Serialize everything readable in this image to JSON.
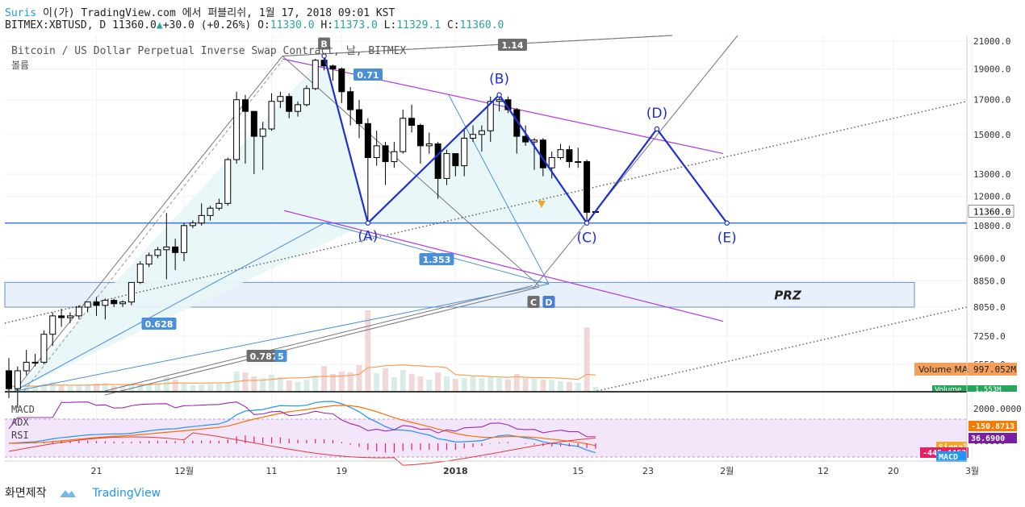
{
  "header": {
    "publisher": "Suris",
    "published_text": "이(가) TradingView.com 에서 퍼블리쉬, 1월 17, 2018 09:01 KST",
    "symbol": "BITMEX:XBTUSD, D",
    "last": "11360.0",
    "arrow": "▲",
    "change": "+30.0 (+0.26%)",
    "o_label": "O:",
    "o": "11330.0",
    "h_label": "H:",
    "h": "11373.0",
    "l_label": "L:",
    "l": "11329.1",
    "c_label": "C:",
    "c": "11360.0"
  },
  "legend": {
    "title": "Bitcoin / US Dollar Perpetual Inverse Swap Contract, 날, BITMEX",
    "volume_label": "볼륨"
  },
  "footer": {
    "left": "화면제작",
    "brand": "TradingView"
  },
  "colors": {
    "up": "#ffffff",
    "down": "#000000",
    "pattern": "#1e2fd6",
    "channel": "#b23be0",
    "prz": "#e8f1fb",
    "gann": "#555555",
    "fib": "#4a90d9",
    "support": "#4a7fd6",
    "macd_line": "#2196f3",
    "signal_line": "#ff6d00",
    "hist": "#e91e63",
    "rsi": "#9c27b0",
    "adx": "#e53935"
  },
  "chart_data": {
    "type": "candlestick",
    "symbol": "BITMEX:XBTUSD",
    "timeframe": "D",
    "price_scale": "log",
    "y_ticks": [
      21000,
      19000,
      17000,
      15000,
      13000,
      12000,
      10800,
      9600,
      8850,
      8050,
      7250,
      6550
    ],
    "y_tick_labels": [
      "21000.0",
      "19000.0",
      "17000.0",
      "15000.0",
      "13000.0",
      "12000.0",
      "10800.0",
      "9600.0",
      "8850.0",
      "8050.0",
      "7250.0",
      "6550.0"
    ],
    "x_ticks": [
      "21",
      "12월",
      "11",
      "19",
      "2018",
      "15",
      "23",
      "2월",
      "12",
      "20",
      "3월"
    ],
    "x_tick_dates": [
      "2017-11-21",
      "2017-12-01",
      "2017-12-11",
      "2017-12-19",
      "2018-01-01",
      "2018-01-15",
      "2018-01-23",
      "2018-02-01",
      "2018-02-12",
      "2018-02-20",
      "2018-03-01"
    ],
    "last_price": 11360.0,
    "last_price_label": "11360.0",
    "candles": [
      {
        "date": "2017-11-11",
        "o": 6400,
        "h": 6700,
        "l": 5800,
        "c": 6000
      },
      {
        "date": "2017-11-12",
        "o": 6000,
        "h": 6500,
        "l": 5600,
        "c": 6400
      },
      {
        "date": "2017-11-13",
        "o": 6400,
        "h": 6900,
        "l": 6300,
        "c": 6600
      },
      {
        "date": "2017-11-14",
        "o": 6600,
        "h": 6800,
        "l": 6500,
        "c": 6600
      },
      {
        "date": "2017-11-15",
        "o": 6600,
        "h": 7400,
        "l": 6550,
        "c": 7300
      },
      {
        "date": "2017-11-16",
        "o": 7300,
        "h": 7900,
        "l": 7000,
        "c": 7800
      },
      {
        "date": "2017-11-17",
        "o": 7800,
        "h": 8000,
        "l": 7500,
        "c": 7750
      },
      {
        "date": "2017-11-18",
        "o": 7750,
        "h": 7900,
        "l": 7600,
        "c": 7800
      },
      {
        "date": "2017-11-19",
        "o": 7800,
        "h": 8100,
        "l": 7700,
        "c": 8050
      },
      {
        "date": "2017-11-20",
        "o": 8050,
        "h": 8200,
        "l": 7900,
        "c": 8200
      },
      {
        "date": "2017-11-21",
        "o": 8200,
        "h": 8350,
        "l": 7800,
        "c": 8100
      },
      {
        "date": "2017-11-22",
        "o": 8100,
        "h": 8300,
        "l": 7700,
        "c": 8250
      },
      {
        "date": "2017-11-23",
        "o": 8250,
        "h": 8300,
        "l": 8050,
        "c": 8150
      },
      {
        "date": "2017-11-24",
        "o": 8150,
        "h": 8250,
        "l": 8050,
        "c": 8200
      },
      {
        "date": "2017-11-25",
        "o": 8200,
        "h": 8800,
        "l": 8100,
        "c": 8800
      },
      {
        "date": "2017-11-26",
        "o": 8800,
        "h": 9500,
        "l": 8750,
        "c": 9400
      },
      {
        "date": "2017-11-27",
        "o": 9400,
        "h": 9800,
        "l": 9300,
        "c": 9700
      },
      {
        "date": "2017-11-28",
        "o": 9700,
        "h": 10000,
        "l": 9600,
        "c": 9900
      },
      {
        "date": "2017-11-29",
        "o": 9900,
        "h": 11300,
        "l": 8900,
        "c": 10000
      },
      {
        "date": "2017-11-30",
        "o": 10000,
        "h": 10300,
        "l": 9200,
        "c": 9800
      },
      {
        "date": "2017-12-01",
        "o": 9800,
        "h": 10900,
        "l": 9500,
        "c": 10800
      },
      {
        "date": "2017-12-02",
        "o": 10800,
        "h": 11000,
        "l": 10700,
        "c": 10900
      },
      {
        "date": "2017-12-03",
        "o": 10900,
        "h": 11700,
        "l": 10800,
        "c": 11200
      },
      {
        "date": "2017-12-04",
        "o": 11200,
        "h": 11600,
        "l": 11000,
        "c": 11500
      },
      {
        "date": "2017-12-05",
        "o": 11500,
        "h": 11900,
        "l": 11400,
        "c": 11700
      },
      {
        "date": "2017-12-06",
        "o": 11700,
        "h": 13800,
        "l": 11600,
        "c": 13700
      },
      {
        "date": "2017-12-07",
        "o": 13700,
        "h": 17500,
        "l": 13500,
        "c": 17000
      },
      {
        "date": "2017-12-08",
        "o": 17000,
        "h": 17300,
        "l": 13500,
        "c": 16300
      },
      {
        "date": "2017-12-09",
        "o": 16300,
        "h": 16300,
        "l": 13000,
        "c": 14900
      },
      {
        "date": "2017-12-10",
        "o": 14900,
        "h": 15700,
        "l": 13200,
        "c": 15300
      },
      {
        "date": "2017-12-11",
        "o": 15300,
        "h": 17400,
        "l": 15200,
        "c": 16900
      },
      {
        "date": "2017-12-12",
        "o": 16900,
        "h": 17500,
        "l": 16500,
        "c": 17200
      },
      {
        "date": "2017-12-13",
        "o": 17200,
        "h": 17400,
        "l": 15900,
        "c": 16300
      },
      {
        "date": "2017-12-14",
        "o": 16300,
        "h": 16900,
        "l": 16000,
        "c": 16700
      },
      {
        "date": "2017-12-15",
        "o": 16700,
        "h": 17900,
        "l": 16600,
        "c": 17700
      },
      {
        "date": "2017-12-16",
        "o": 17700,
        "h": 19700,
        "l": 17600,
        "c": 19600
      },
      {
        "date": "2017-12-17",
        "o": 19600,
        "h": 20000,
        "l": 18900,
        "c": 19200
      },
      {
        "date": "2017-12-18",
        "o": 19200,
        "h": 19300,
        "l": 18200,
        "c": 19000
      },
      {
        "date": "2017-12-19",
        "o": 19000,
        "h": 19100,
        "l": 16800,
        "c": 17500
      },
      {
        "date": "2017-12-20",
        "o": 17500,
        "h": 17800,
        "l": 15500,
        "c": 16400
      },
      {
        "date": "2017-12-21",
        "o": 16400,
        "h": 17000,
        "l": 14800,
        "c": 15600
      },
      {
        "date": "2017-12-22",
        "o": 15600,
        "h": 15900,
        "l": 10900,
        "c": 13800
      },
      {
        "date": "2017-12-23",
        "o": 13800,
        "h": 15200,
        "l": 13400,
        "c": 14400
      },
      {
        "date": "2017-12-24",
        "o": 14400,
        "h": 14600,
        "l": 12500,
        "c": 13600
      },
      {
        "date": "2017-12-25",
        "o": 13600,
        "h": 14600,
        "l": 13300,
        "c": 14100
      },
      {
        "date": "2017-12-26",
        "o": 14100,
        "h": 16400,
        "l": 14000,
        "c": 15900
      },
      {
        "date": "2017-12-27",
        "o": 15900,
        "h": 16700,
        "l": 15100,
        "c": 15500
      },
      {
        "date": "2017-12-28",
        "o": 15500,
        "h": 15600,
        "l": 13500,
        "c": 14400
      },
      {
        "date": "2017-12-29",
        "o": 14400,
        "h": 15100,
        "l": 14000,
        "c": 14500
      },
      {
        "date": "2017-12-30",
        "o": 14500,
        "h": 14600,
        "l": 11900,
        "c": 12800
      },
      {
        "date": "2017-12-31",
        "o": 12800,
        "h": 14200,
        "l": 12500,
        "c": 14000
      },
      {
        "date": "2018-01-01",
        "o": 14000,
        "h": 14000,
        "l": 12900,
        "c": 13400
      },
      {
        "date": "2018-01-02",
        "o": 13400,
        "h": 15300,
        "l": 12900,
        "c": 14800
      },
      {
        "date": "2018-01-03",
        "o": 14800,
        "h": 15500,
        "l": 14600,
        "c": 15000
      },
      {
        "date": "2018-01-04",
        "o": 15000,
        "h": 15500,
        "l": 14100,
        "c": 15200
      },
      {
        "date": "2018-01-05",
        "o": 15200,
        "h": 17200,
        "l": 14600,
        "c": 16900
      },
      {
        "date": "2018-01-06",
        "o": 16900,
        "h": 17400,
        "l": 16300,
        "c": 17000
      },
      {
        "date": "2018-01-07",
        "o": 17000,
        "h": 17200,
        "l": 16200,
        "c": 16400
      },
      {
        "date": "2018-01-08",
        "o": 16400,
        "h": 16500,
        "l": 14000,
        "c": 14900
      },
      {
        "date": "2018-01-09",
        "o": 14900,
        "h": 15500,
        "l": 14400,
        "c": 14600
      },
      {
        "date": "2018-01-10",
        "o": 14600,
        "h": 14800,
        "l": 13200,
        "c": 14700
      },
      {
        "date": "2018-01-11",
        "o": 14700,
        "h": 14800,
        "l": 12900,
        "c": 13300
      },
      {
        "date": "2018-01-12",
        "o": 13300,
        "h": 14100,
        "l": 12800,
        "c": 13800
      },
      {
        "date": "2018-01-13",
        "o": 13800,
        "h": 14500,
        "l": 13700,
        "c": 14200
      },
      {
        "date": "2018-01-14",
        "o": 14200,
        "h": 14400,
        "l": 13300,
        "c": 13600
      },
      {
        "date": "2018-01-15",
        "o": 13600,
        "h": 14300,
        "l": 13300,
        "c": 13600
      },
      {
        "date": "2018-01-16",
        "o": 13600,
        "h": 13700,
        "l": 10900,
        "c": 11330
      },
      {
        "date": "2018-01-17",
        "o": 11330,
        "h": 11373,
        "l": 11329.1,
        "c": 11360
      }
    ],
    "pattern": {
      "name": "XABCD",
      "points": [
        {
          "label": "B",
          "date": "2017-12-17",
          "price": 19900
        },
        {
          "label": "(A)",
          "date": "2017-12-22",
          "price": 10900
        },
        {
          "label": "(B)",
          "date": "2018-01-06",
          "price": 17300
        },
        {
          "label": "(C)",
          "date": "2018-01-16",
          "price": 10900
        },
        {
          "label": "(D)",
          "date": "2018-01-24",
          "price": 15300
        },
        {
          "label": "(E)",
          "date": "2018-02-01",
          "price": 10900
        }
      ],
      "ratios": [
        "0.71",
        "1.353",
        "0.628",
        "0.787",
        "5",
        "1.14"
      ],
      "markers": [
        "C",
        "D"
      ]
    },
    "prz": {
      "label": "PRZ",
      "from": 8050,
      "to": 8800
    },
    "support_level": 10900,
    "volume": {
      "ma_label": "Volume MA",
      "ma_value": "997.052M",
      "value_label": "Volume",
      "value": "1.553M",
      "values_rel": [
        0.06,
        0.05,
        0.07,
        0.06,
        0.09,
        0.11,
        0.07,
        0.06,
        0.07,
        0.08,
        0.09,
        0.1,
        0.06,
        0.07,
        0.08,
        0.09,
        0.09,
        0.1,
        0.17,
        0.14,
        0.09,
        0.07,
        0.08,
        0.08,
        0.09,
        0.11,
        0.24,
        0.23,
        0.18,
        0.16,
        0.2,
        0.17,
        0.13,
        0.11,
        0.14,
        0.19,
        0.31,
        0.21,
        0.24,
        0.23,
        0.32,
        1.0,
        0.22,
        0.28,
        0.17,
        0.26,
        0.21,
        0.18,
        0.14,
        0.23,
        0.18,
        0.15,
        0.16,
        0.19,
        0.16,
        0.18,
        0.16,
        0.14,
        0.21,
        0.16,
        0.15,
        0.14,
        0.14,
        0.12,
        0.11,
        0.1,
        0.79,
        0.05
      ]
    },
    "indicators": {
      "labels": [
        "MACD",
        "ADX",
        "RSI"
      ],
      "y_ticks": [
        2000,
        0
      ],
      "y_tick_labels": [
        "2000.0000",
        "0.0000"
      ],
      "values": [
        {
          "name": "MACD",
          "value": "-150.8713"
        },
        {
          "name": "ADX",
          "value": "36.6900"
        },
        {
          "name": "Signal",
          "value": "Signal"
        },
        {
          "name": "Histogram",
          "value": "-445.4462"
        },
        {
          "name": "MACD",
          "value": "MACD"
        }
      ]
    }
  }
}
